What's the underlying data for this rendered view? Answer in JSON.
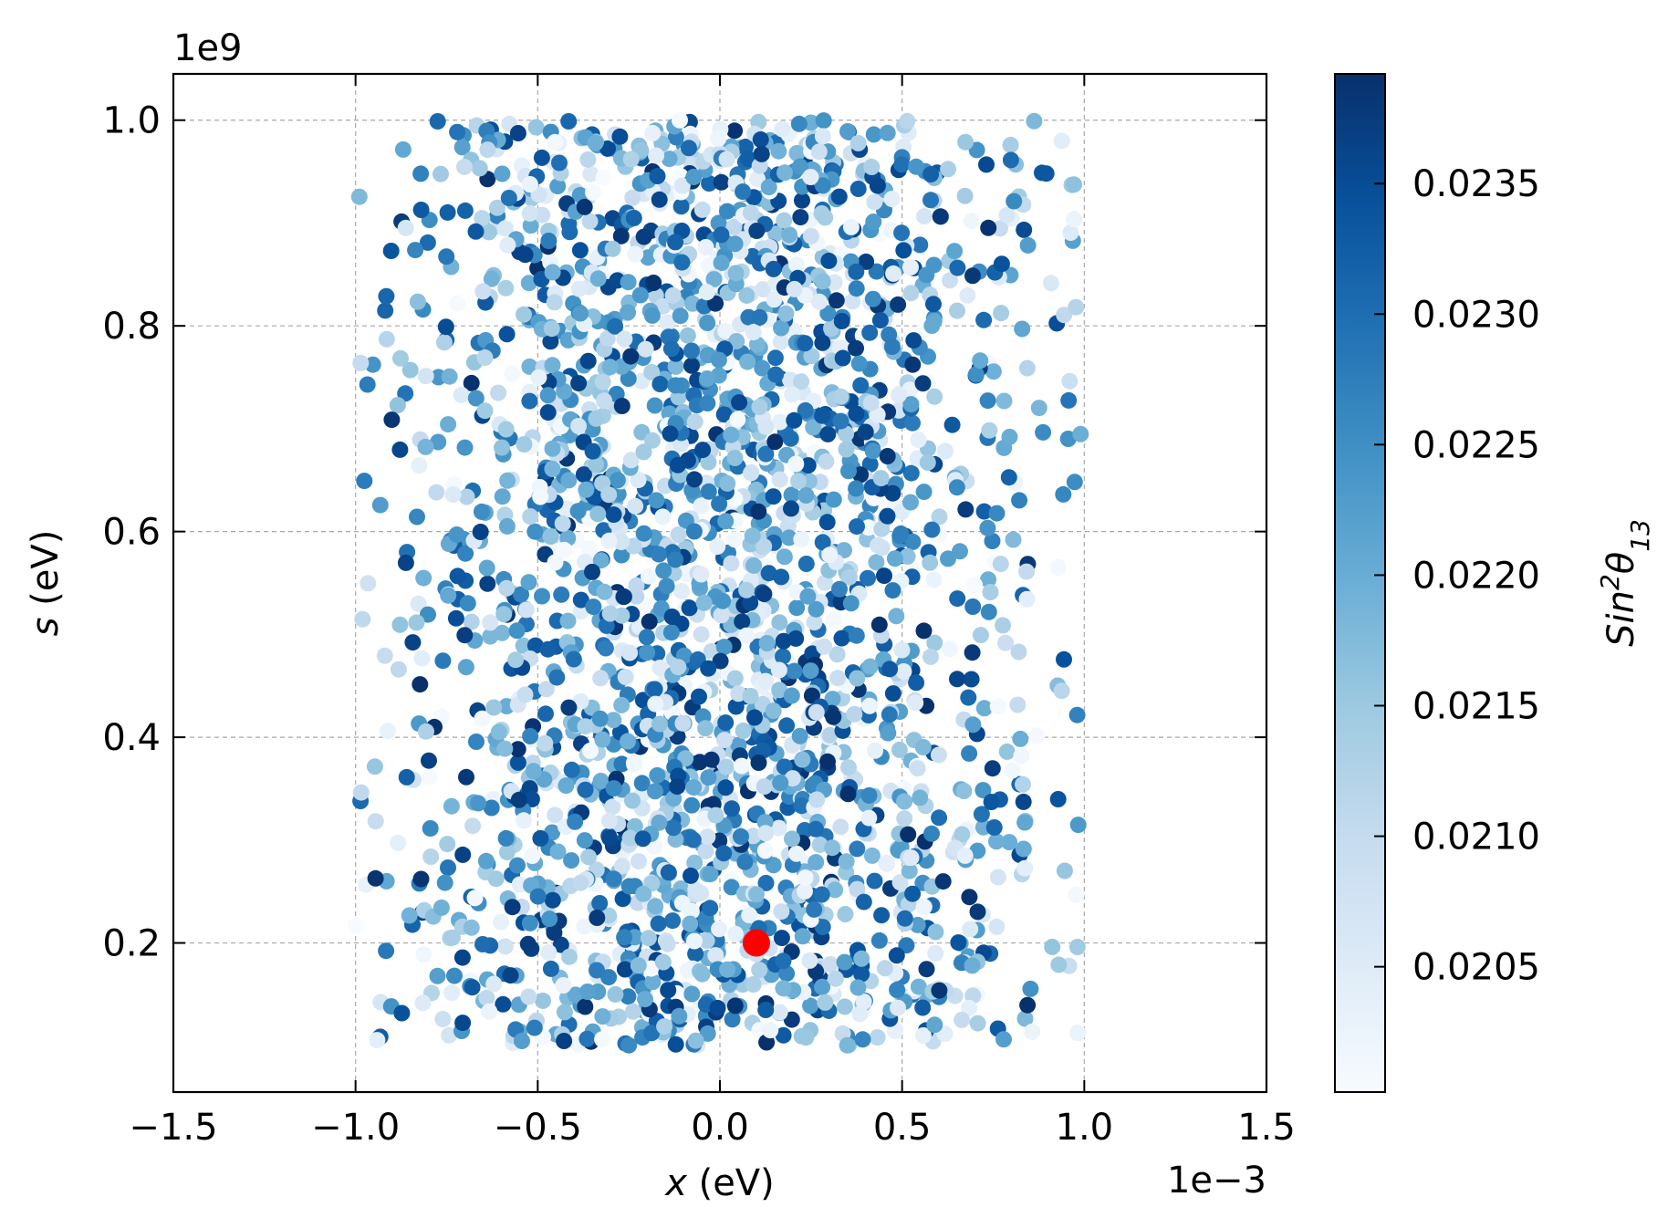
{
  "chart_data": {
    "type": "scatter",
    "title": "",
    "xlabel": {
      "var": "x",
      "unit": " (eV)"
    },
    "ylabel": {
      "var": "s",
      "unit": " (eV)"
    },
    "x_offset_label": "1e−3",
    "y_offset_label": "1e9",
    "xlim": [
      -1.5,
      1.5
    ],
    "ylim": [
      0.055,
      1.045
    ],
    "x_ticks": [
      -1.5,
      -1.0,
      -0.5,
      0.0,
      0.5,
      1.0,
      1.5
    ],
    "x_tick_labels": [
      "−1.5",
      "−1.0",
      "−0.5",
      "0.0",
      "0.5",
      "1.0",
      "1.5"
    ],
    "y_ticks": [
      0.2,
      0.4,
      0.6,
      0.8,
      1.0
    ],
    "y_tick_labels": [
      "0.2",
      "0.4",
      "0.6",
      "0.8",
      "1.0"
    ],
    "grid": true,
    "colormap": "Blues",
    "colorbar": {
      "label": {
        "base": "Sin",
        "sup": "2",
        "theta": "θ",
        "sub": "13"
      },
      "range": [
        0.02002,
        0.02392
      ],
      "ticks": [
        0.0205,
        0.021,
        0.0215,
        0.022,
        0.0225,
        0.023,
        0.0235
      ],
      "tick_labels": [
        "0.0205",
        "0.0210",
        "0.0215",
        "0.0220",
        "0.0225",
        "0.0230",
        "0.0235"
      ]
    },
    "scatter_summary": {
      "count": 2600,
      "x_range": [
        -1.0,
        1.0
      ],
      "y_range": [
        0.1,
        1.0
      ],
      "x_distribution": "concentrated near x = 0, thinning toward ±1.0",
      "c_range": [
        0.02002,
        0.02392
      ]
    },
    "highlight_point": {
      "x": 0.1,
      "y": 0.2,
      "color": "#ff0000"
    }
  }
}
